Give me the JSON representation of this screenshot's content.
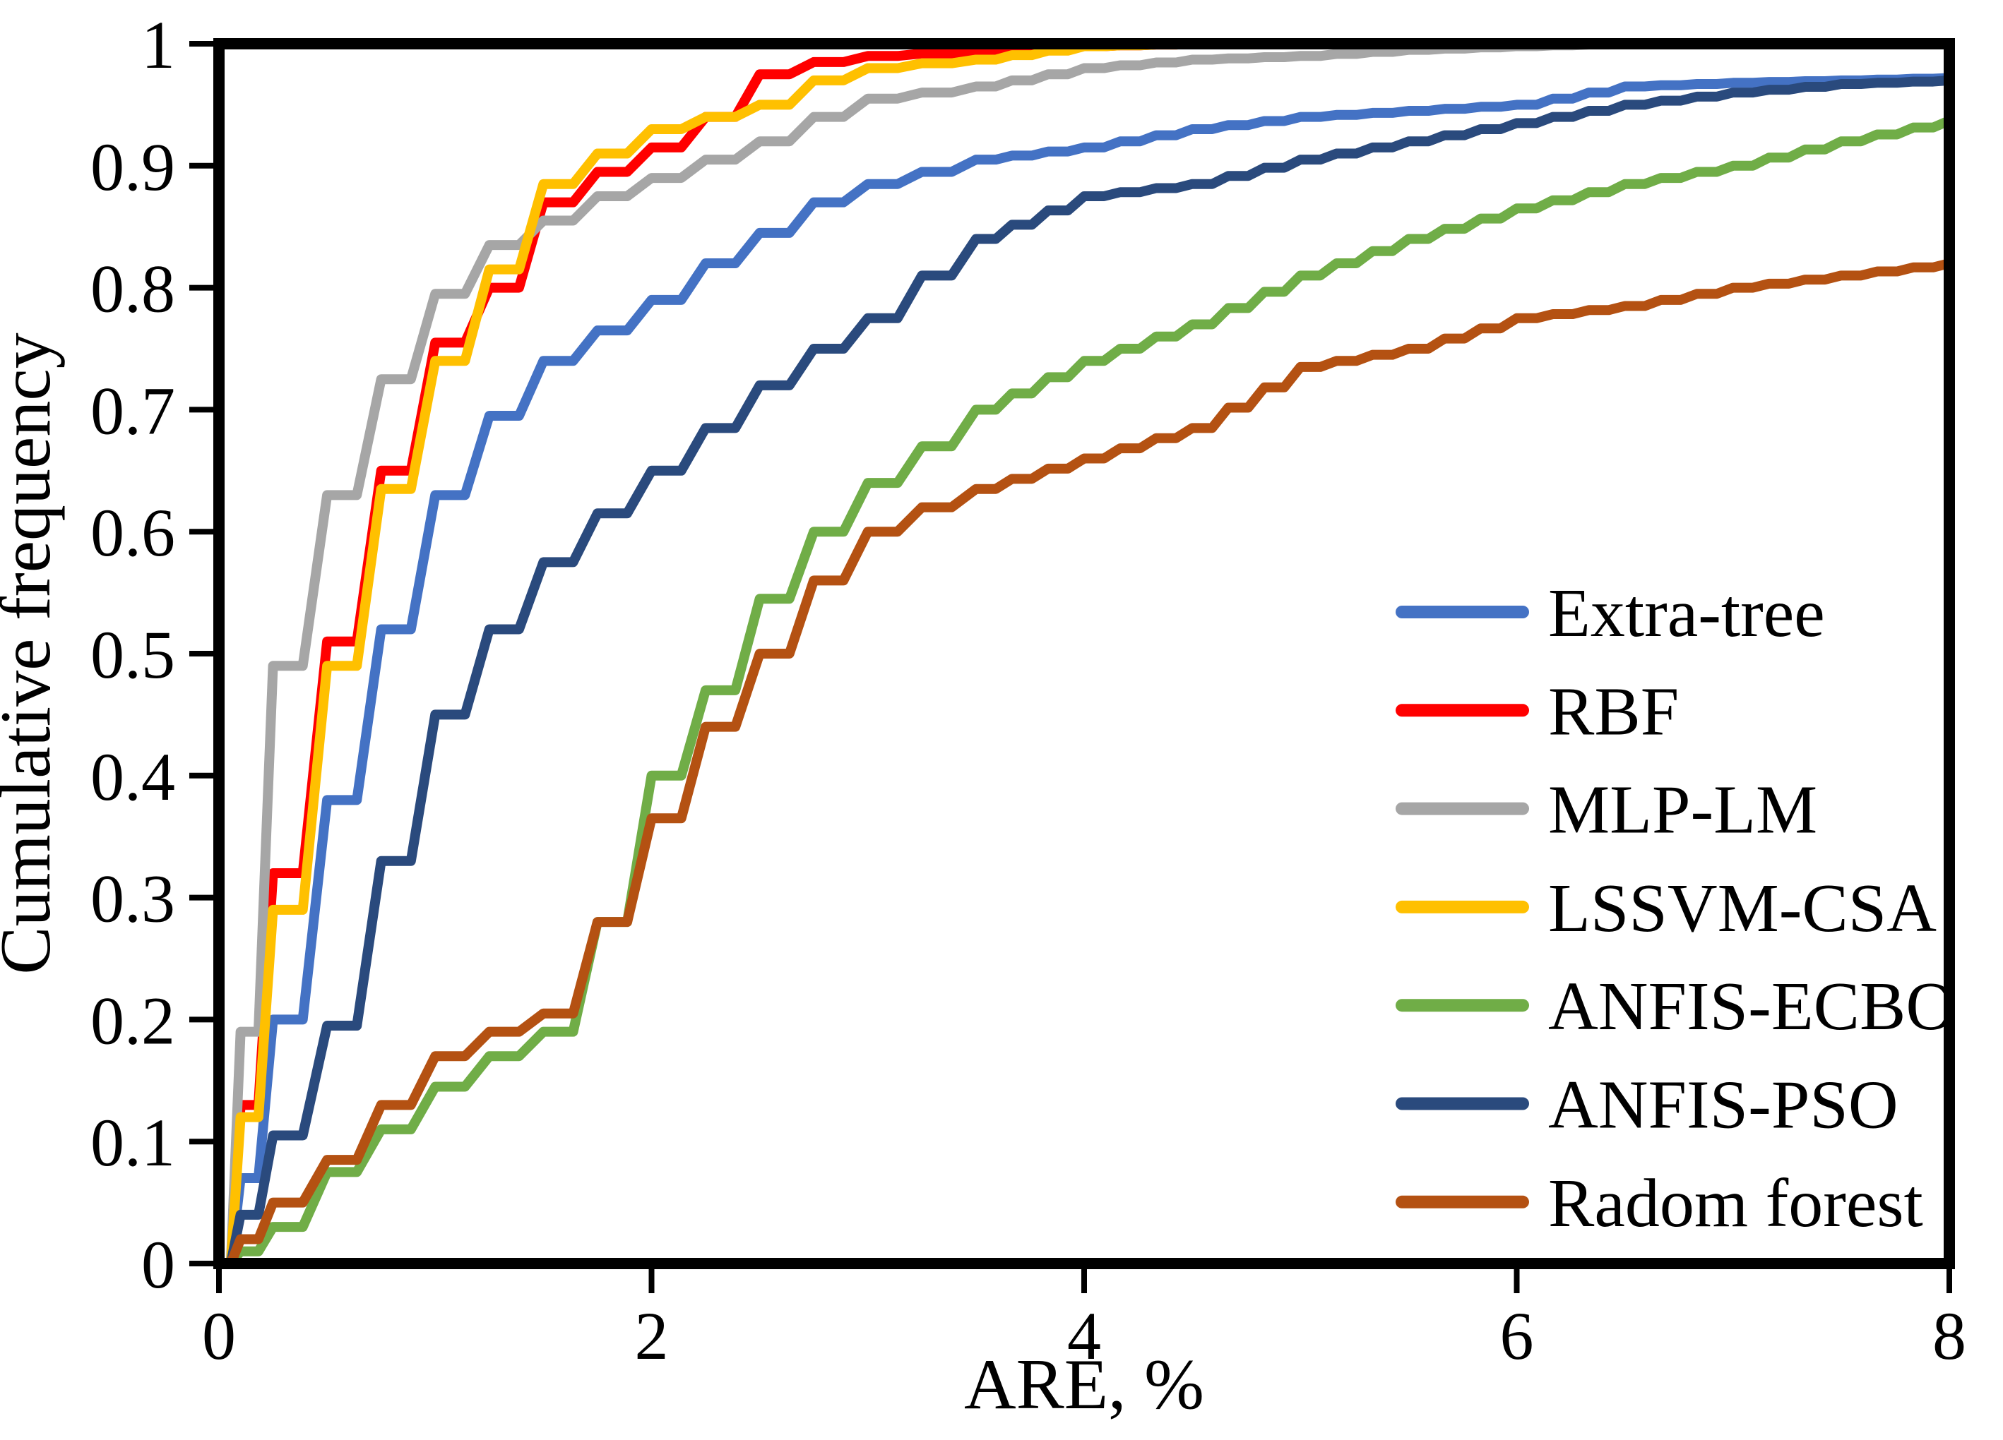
{
  "figure": {
    "background": "#ffffff",
    "frame_color": "#000000"
  },
  "chart_data": {
    "type": "line",
    "title": "",
    "xlabel": "ARE, %",
    "ylabel": "Cumulative frequency",
    "xlim": [
      0,
      8
    ],
    "ylim": [
      0,
      1
    ],
    "grid": false,
    "legend_position": "inside-right",
    "x_ticks": [
      0,
      2,
      4,
      6,
      8
    ],
    "x_tick_labels": [
      "0",
      "2",
      "4",
      "6",
      "8"
    ],
    "y_ticks": [
      0,
      0.1,
      0.2,
      0.3,
      0.4,
      0.5,
      0.6,
      0.7,
      0.8,
      0.9,
      1
    ],
    "y_tick_labels": [
      "0",
      "0.1",
      "0.2",
      "0.3",
      "0.4",
      "0.5",
      "0.6",
      "0.7",
      "0.8",
      "0.9",
      "1"
    ],
    "x": [
      0,
      0.1,
      0.25,
      0.5,
      0.75,
      1,
      1.25,
      1.5,
      1.75,
      2,
      2.25,
      2.5,
      2.75,
      3,
      3.25,
      3.5,
      4,
      4.5,
      5,
      5.5,
      6,
      6.5,
      7,
      7.5,
      8
    ],
    "series": [
      {
        "name": "Extra-tree",
        "color": "#4472C4",
        "values": [
          0,
          0.07,
          0.2,
          0.38,
          0.52,
          0.63,
          0.695,
          0.74,
          0.765,
          0.79,
          0.82,
          0.845,
          0.87,
          0.885,
          0.895,
          0.905,
          0.915,
          0.93,
          0.94,
          0.945,
          0.95,
          0.965,
          0.968,
          0.97,
          0.972
        ]
      },
      {
        "name": "RBF",
        "color": "#FF0000",
        "values": [
          0,
          0.13,
          0.32,
          0.51,
          0.65,
          0.755,
          0.8,
          0.87,
          0.895,
          0.915,
          0.94,
          0.975,
          0.985,
          0.99,
          0.992,
          0.995,
          0.998,
          1,
          1,
          1,
          1,
          1,
          1,
          1,
          1
        ]
      },
      {
        "name": "MLP-LM",
        "color": "#A6A6A6",
        "values": [
          0,
          0.19,
          0.49,
          0.63,
          0.725,
          0.795,
          0.835,
          0.855,
          0.875,
          0.89,
          0.905,
          0.92,
          0.94,
          0.955,
          0.96,
          0.965,
          0.98,
          0.987,
          0.99,
          0.995,
          0.998,
          1,
          1,
          1,
          1
        ]
      },
      {
        "name": "LSSVM-CSA",
        "color": "#FFC000",
        "values": [
          0,
          0.12,
          0.29,
          0.49,
          0.635,
          0.74,
          0.815,
          0.885,
          0.91,
          0.93,
          0.94,
          0.95,
          0.97,
          0.98,
          0.984,
          0.987,
          0.998,
          1,
          1,
          1,
          1,
          1,
          1,
          1,
          1
        ]
      },
      {
        "name": "ANFIS-ECBO",
        "color": "#70AD47",
        "values": [
          0,
          0.01,
          0.03,
          0.075,
          0.11,
          0.145,
          0.17,
          0.19,
          0.28,
          0.4,
          0.47,
          0.545,
          0.6,
          0.64,
          0.67,
          0.7,
          0.74,
          0.77,
          0.81,
          0.84,
          0.865,
          0.885,
          0.9,
          0.92,
          0.937
        ]
      },
      {
        "name": "ANFIS-PSO",
        "color": "#2A4A7D",
        "values": [
          0,
          0.04,
          0.105,
          0.195,
          0.33,
          0.45,
          0.52,
          0.575,
          0.615,
          0.65,
          0.685,
          0.72,
          0.75,
          0.775,
          0.81,
          0.84,
          0.875,
          0.885,
          0.905,
          0.92,
          0.935,
          0.95,
          0.96,
          0.967,
          0.97
        ]
      },
      {
        "name": "Radom forest",
        "color": "#B45112",
        "values": [
          0,
          0.02,
          0.05,
          0.085,
          0.13,
          0.17,
          0.19,
          0.205,
          0.28,
          0.365,
          0.44,
          0.5,
          0.56,
          0.6,
          0.62,
          0.635,
          0.66,
          0.685,
          0.735,
          0.75,
          0.775,
          0.785,
          0.8,
          0.81,
          0.82
        ]
      }
    ]
  }
}
